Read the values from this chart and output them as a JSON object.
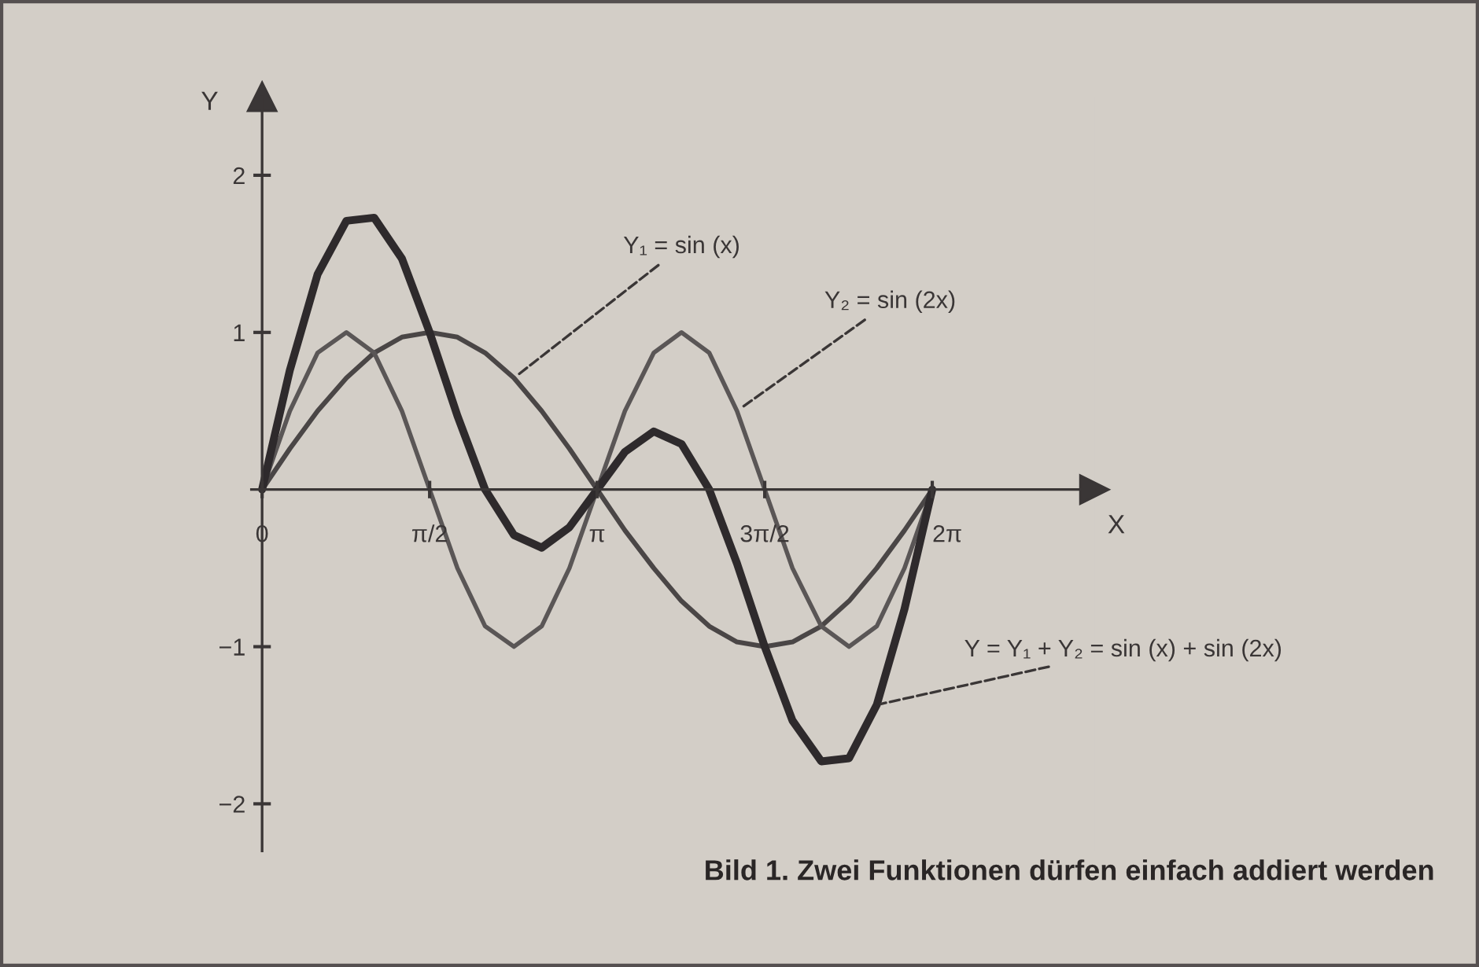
{
  "chart_data": {
    "type": "line",
    "title": "Bild 1. Zwei Funktionen dürfen einfach addiert werden",
    "xlabel": "X",
    "ylabel": "Y",
    "x": [
      0,
      0.26,
      0.52,
      0.79,
      1.05,
      1.31,
      1.57,
      1.83,
      2.09,
      2.36,
      2.62,
      2.88,
      3.14,
      3.4,
      3.67,
      3.93,
      4.19,
      4.45,
      4.71,
      4.97,
      5.24,
      5.5,
      5.76,
      6.02,
      6.28
    ],
    "series": [
      {
        "color": "#4a4646",
        "values": [
          0,
          0.26,
          0.5,
          0.71,
          0.87,
          0.97,
          1,
          0.97,
          0.87,
          0.71,
          0.5,
          0.26,
          0,
          -0.26,
          -0.5,
          -0.71,
          -0.87,
          -0.97,
          -1,
          -0.97,
          -0.87,
          -0.71,
          -0.5,
          -0.26,
          0
        ]
      },
      {
        "color": "#5a5656",
        "values": [
          0,
          0.5,
          0.87,
          1,
          0.87,
          0.5,
          0,
          -0.5,
          -0.87,
          -1,
          -0.87,
          -0.5,
          0,
          0.5,
          0.87,
          1,
          0.87,
          0.5,
          0,
          -0.5,
          -0.87,
          -1,
          -0.87,
          -0.5,
          0
        ]
      },
      {
        "color": "#2e2a2c",
        "values": [
          0,
          0.76,
          1.37,
          1.71,
          1.73,
          1.47,
          1,
          0.47,
          0,
          -0.29,
          -0.37,
          -0.24,
          0,
          0.24,
          0.37,
          0.29,
          0,
          -0.47,
          -1,
          -1.47,
          -1.73,
          -1.71,
          -1.37,
          -0.76,
          0
        ]
      }
    ],
    "xlim": [
      -0.1,
      7.8
    ],
    "ylim": [
      -2.3,
      2.5
    ],
    "xticks": [
      0,
      {
        "value": 1.57,
        "label": "π/2"
      },
      {
        "value": 3.14,
        "label": "π"
      },
      {
        "value": 4.71,
        "label": "3π/2"
      },
      {
        "value": 6.28,
        "label": "2π"
      }
    ],
    "yticks": [
      {
        "value": -2,
        "label": "−2"
      },
      {
        "value": -1,
        "label": "−1"
      },
      {
        "value": 1,
        "label": "1"
      },
      {
        "value": 2,
        "label": "2"
      }
    ],
    "annotations": [
      {
        "text": "Y₁ = sin (x)",
        "x": 2.36,
        "y": 0.71
      },
      {
        "text": "Y₂ = sin (2x)",
        "x": 4.45,
        "y": 0.5
      },
      {
        "text": "Y = Y₁ + Y₂ = sin (x) + sin (2x)",
        "x": 5.76,
        "y": -1.37
      }
    ],
    "grid": false,
    "legend": false,
    "marker": "none",
    "line_style": "solid"
  }
}
